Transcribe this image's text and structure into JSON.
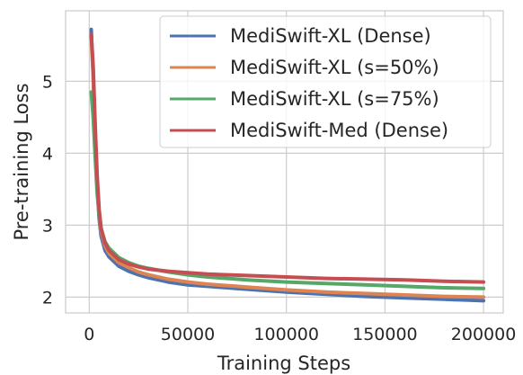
{
  "chart_data": {
    "type": "line",
    "title": "",
    "xlabel": "Training Steps",
    "ylabel": "Pre-training Loss",
    "xlim": [
      -12000,
      210000
    ],
    "ylim": [
      1.78,
      5.98
    ],
    "x_ticks": [
      0,
      50000,
      100000,
      150000,
      200000
    ],
    "x_tick_labels": [
      "0",
      "50000",
      "100000",
      "150000",
      "200000"
    ],
    "y_ticks": [
      2,
      3,
      4,
      5
    ],
    "y_tick_labels": [
      "2",
      "3",
      "4",
      "5"
    ],
    "grid": true,
    "legend_position": "top-right",
    "series": [
      {
        "name": "MediSwift-XL (Dense)",
        "color": "#4c72b0",
        "points": [
          [
            1000,
            5.72
          ],
          [
            2000,
            5.1
          ],
          [
            3000,
            4.25
          ],
          [
            4000,
            3.55
          ],
          [
            5000,
            3.1
          ],
          [
            6000,
            2.85
          ],
          [
            8000,
            2.65
          ],
          [
            10000,
            2.56
          ],
          [
            15000,
            2.43
          ],
          [
            20000,
            2.36
          ],
          [
            25000,
            2.31
          ],
          [
            30000,
            2.27
          ],
          [
            40000,
            2.21
          ],
          [
            50000,
            2.17
          ],
          [
            60000,
            2.15
          ],
          [
            70000,
            2.13
          ],
          [
            80000,
            2.11
          ],
          [
            100000,
            2.07
          ],
          [
            120000,
            2.04
          ],
          [
            140000,
            2.01
          ],
          [
            160000,
            1.99
          ],
          [
            180000,
            1.97
          ],
          [
            200000,
            1.95
          ]
        ]
      },
      {
        "name": "MediSwift-XL (s=50%)",
        "color": "#dd8452",
        "points": [
          [
            1000,
            5.62
          ],
          [
            2000,
            5.05
          ],
          [
            3000,
            4.3
          ],
          [
            4000,
            3.62
          ],
          [
            5000,
            3.18
          ],
          [
            6000,
            2.92
          ],
          [
            8000,
            2.71
          ],
          [
            10000,
            2.61
          ],
          [
            15000,
            2.48
          ],
          [
            20000,
            2.41
          ],
          [
            25000,
            2.35
          ],
          [
            30000,
            2.31
          ],
          [
            40000,
            2.25
          ],
          [
            50000,
            2.21
          ],
          [
            60000,
            2.18
          ],
          [
            70000,
            2.16
          ],
          [
            80000,
            2.14
          ],
          [
            100000,
            2.1
          ],
          [
            120000,
            2.07
          ],
          [
            140000,
            2.05
          ],
          [
            160000,
            2.03
          ],
          [
            180000,
            2.01
          ],
          [
            200000,
            2.0
          ]
        ]
      },
      {
        "name": "MediSwift-XL (s=75%)",
        "color": "#55a868",
        "points": [
          [
            1000,
            4.85
          ],
          [
            2000,
            4.5
          ],
          [
            3000,
            3.95
          ],
          [
            4000,
            3.45
          ],
          [
            5000,
            3.15
          ],
          [
            6000,
            2.95
          ],
          [
            8000,
            2.77
          ],
          [
            10000,
            2.68
          ],
          [
            15000,
            2.55
          ],
          [
            20000,
            2.48
          ],
          [
            25000,
            2.43
          ],
          [
            30000,
            2.4
          ],
          [
            40000,
            2.35
          ],
          [
            50000,
            2.31
          ],
          [
            60000,
            2.28
          ],
          [
            70000,
            2.26
          ],
          [
            80000,
            2.24
          ],
          [
            100000,
            2.21
          ],
          [
            120000,
            2.19
          ],
          [
            140000,
            2.17
          ],
          [
            160000,
            2.15
          ],
          [
            180000,
            2.13
          ],
          [
            200000,
            2.12
          ]
        ]
      },
      {
        "name": "MediSwift-Med (Dense)",
        "color": "#c44e52",
        "points": [
          [
            1000,
            5.65
          ],
          [
            2000,
            5.2
          ],
          [
            3000,
            4.4
          ],
          [
            4000,
            3.7
          ],
          [
            5000,
            3.22
          ],
          [
            6000,
            2.96
          ],
          [
            8000,
            2.75
          ],
          [
            10000,
            2.65
          ],
          [
            15000,
            2.52
          ],
          [
            20000,
            2.46
          ],
          [
            25000,
            2.42
          ],
          [
            30000,
            2.39
          ],
          [
            40000,
            2.36
          ],
          [
            50000,
            2.34
          ],
          [
            60000,
            2.32
          ],
          [
            70000,
            2.31
          ],
          [
            80000,
            2.3
          ],
          [
            100000,
            2.28
          ],
          [
            120000,
            2.26
          ],
          [
            140000,
            2.25
          ],
          [
            160000,
            2.24
          ],
          [
            180000,
            2.22
          ],
          [
            200000,
            2.21
          ]
        ]
      }
    ]
  }
}
